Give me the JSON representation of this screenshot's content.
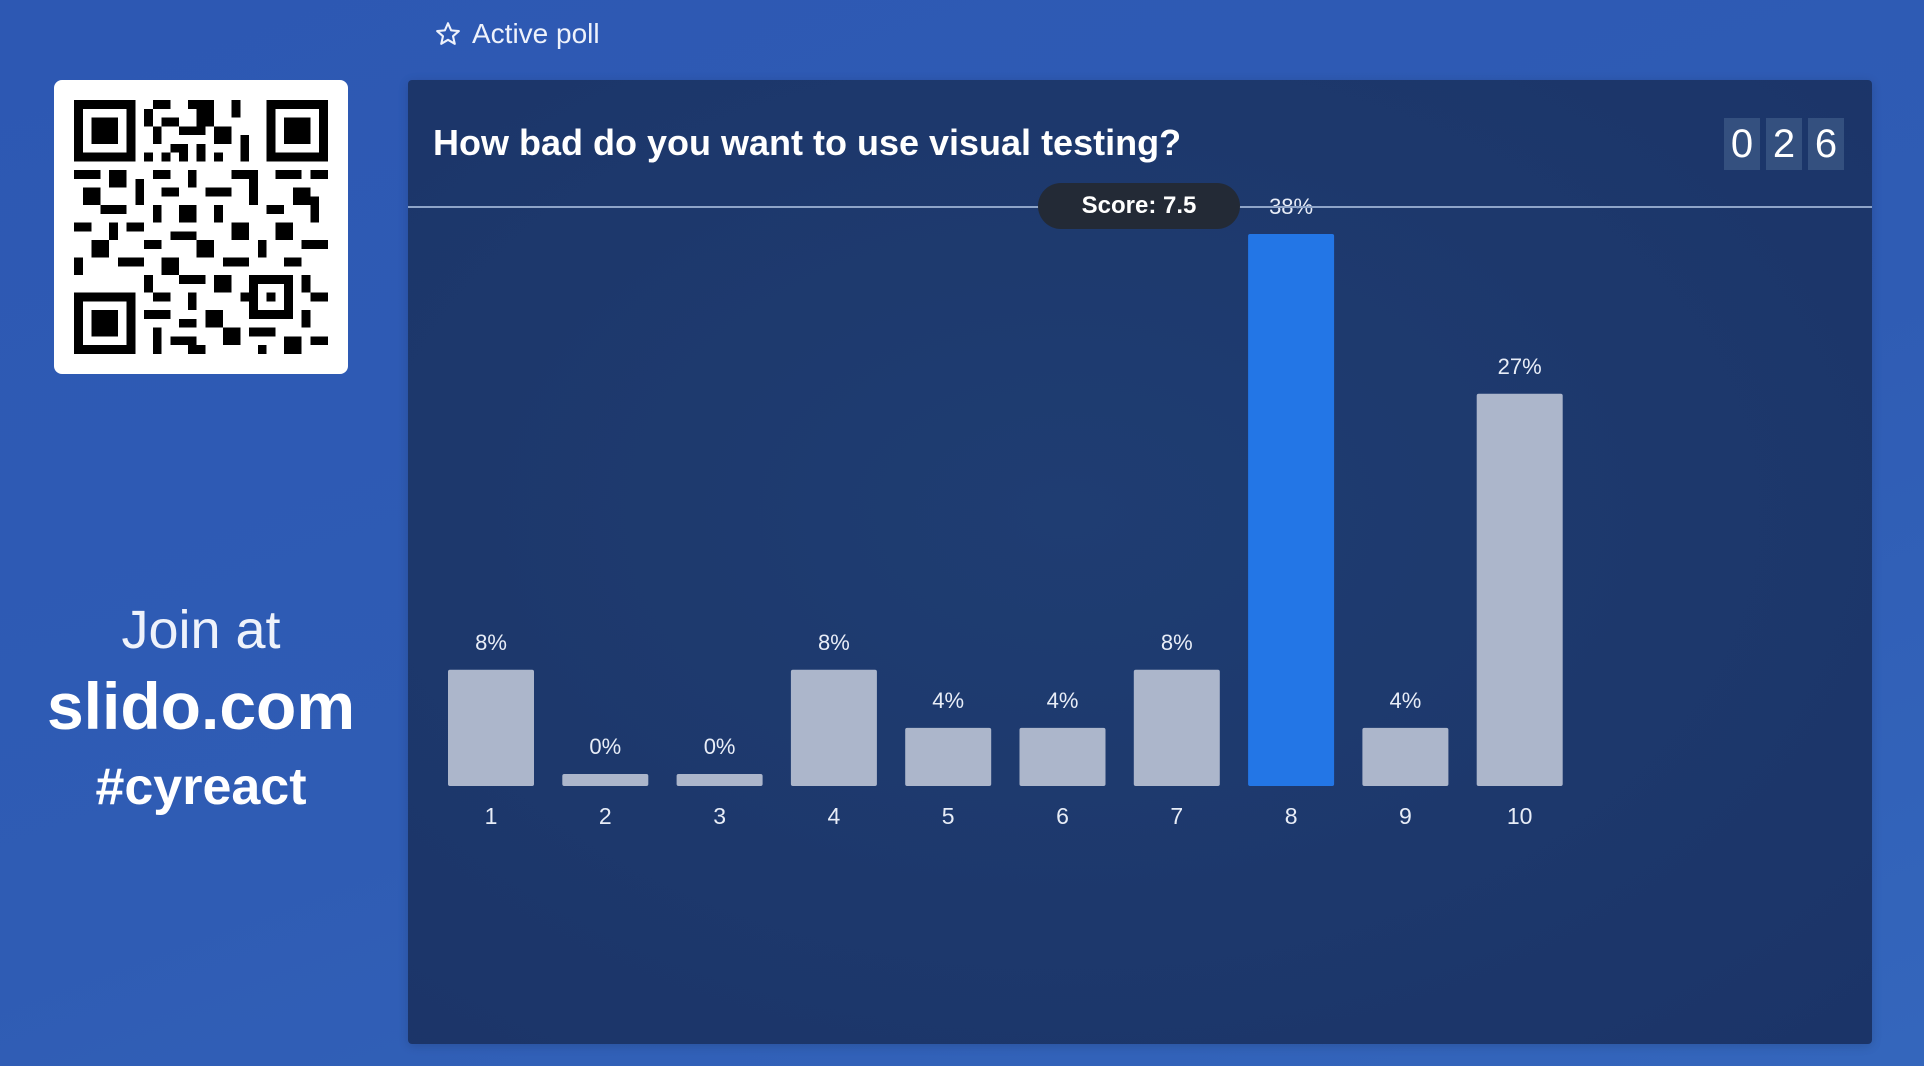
{
  "header": {
    "label": "Active poll",
    "icon": "star-icon"
  },
  "left_panel": {
    "qr_icon": "qr-code-icon",
    "join_text": "Join at",
    "site": "slido.com",
    "hashtag": "#cyreact"
  },
  "poll": {
    "question": "How bad do you want to use visual testing?",
    "vote_count_digits": [
      "0",
      "2",
      "6"
    ],
    "score_label": "Score: 7.5"
  },
  "colors": {
    "bar_default": "#acb6cb",
    "bar_highlight": "#2376e6",
    "panel_bg": "#1d386c",
    "page_bg": "#2f5cb4"
  },
  "chart_data": {
    "type": "bar",
    "categories": [
      "1",
      "2",
      "3",
      "4",
      "5",
      "6",
      "7",
      "8",
      "9",
      "10"
    ],
    "values": [
      8,
      0,
      0,
      8,
      4,
      4,
      8,
      38,
      4,
      27
    ],
    "value_labels": [
      "8%",
      "0%",
      "0%",
      "8%",
      "4%",
      "4%",
      "8%",
      "38%",
      "4%",
      "27%"
    ],
    "highlight_category": "8",
    "unit": "%",
    "title": "",
    "xlabel": "",
    "ylabel": "",
    "ylim": [
      0,
      38
    ],
    "grid": false,
    "legend": "none"
  }
}
